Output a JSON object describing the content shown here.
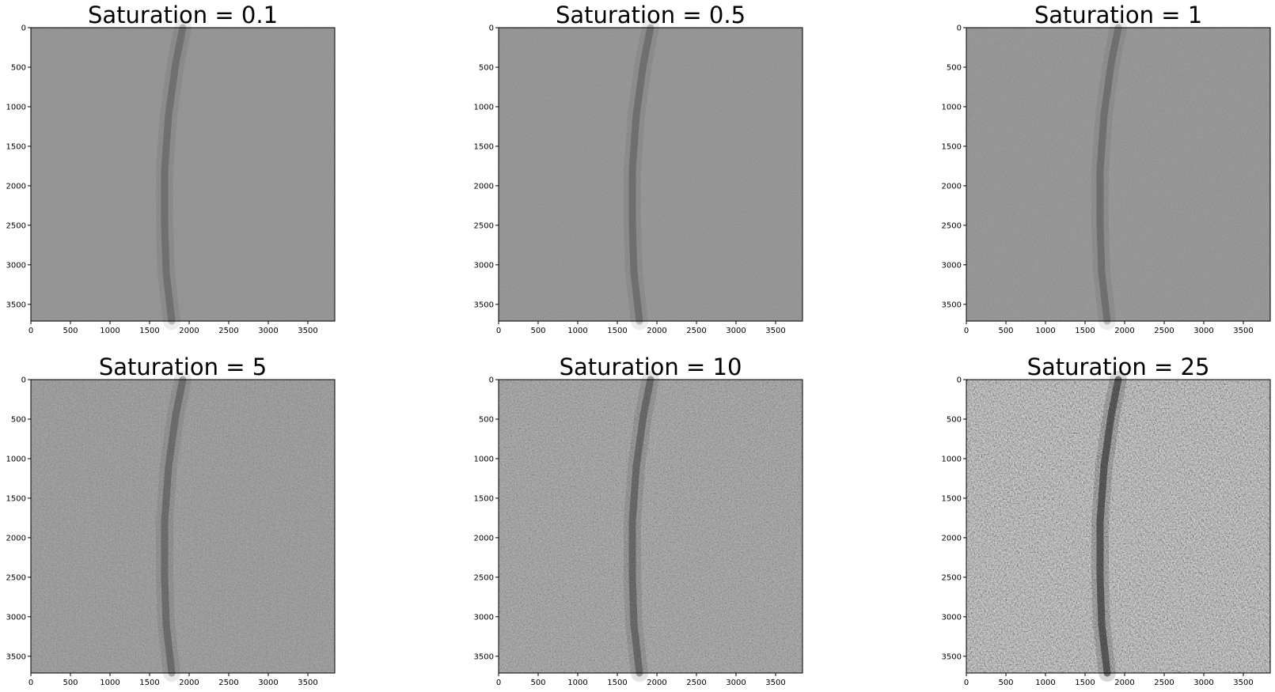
{
  "chart_data": [
    {
      "type": "heatmap",
      "title": "Saturation = 0.1",
      "saturation": 0.1,
      "colormap": "gray",
      "image_width": 3840,
      "image_height": 3712,
      "xlim": [
        0,
        3840
      ],
      "ylim": [
        3712,
        0
      ],
      "x_ticks": [
        0,
        500,
        1000,
        1500,
        2000,
        2500,
        3000,
        3500
      ],
      "y_ticks": [
        0,
        500,
        1000,
        1500,
        2000,
        2500,
        3000,
        3500
      ],
      "x_tick_labels": [
        "0",
        "500",
        "1000",
        "1500",
        "2000",
        "2500",
        "3000",
        "3500"
      ],
      "y_tick_labels": [
        "0",
        "500",
        "1000",
        "1500",
        "2000",
        "2500",
        "3000",
        "3500"
      ]
    },
    {
      "type": "heatmap",
      "title": "Saturation = 0.5",
      "saturation": 0.5,
      "colormap": "gray",
      "image_width": 3840,
      "image_height": 3712,
      "xlim": [
        0,
        3840
      ],
      "ylim": [
        3712,
        0
      ],
      "x_ticks": [
        0,
        500,
        1000,
        1500,
        2000,
        2500,
        3000,
        3500
      ],
      "y_ticks": [
        0,
        500,
        1000,
        1500,
        2000,
        2500,
        3000,
        3500
      ],
      "x_tick_labels": [
        "0",
        "500",
        "1000",
        "1500",
        "2000",
        "2500",
        "3000",
        "3500"
      ],
      "y_tick_labels": [
        "0",
        "500",
        "1000",
        "1500",
        "2000",
        "2500",
        "3000",
        "3500"
      ]
    },
    {
      "type": "heatmap",
      "title": "Saturation = 1",
      "saturation": 1,
      "colormap": "gray",
      "image_width": 3840,
      "image_height": 3712,
      "xlim": [
        0,
        3840
      ],
      "ylim": [
        3712,
        0
      ],
      "x_ticks": [
        0,
        500,
        1000,
        1500,
        2000,
        2500,
        3000,
        3500
      ],
      "y_ticks": [
        0,
        500,
        1000,
        1500,
        2000,
        2500,
        3000,
        3500
      ],
      "x_tick_labels": [
        "0",
        "500",
        "1000",
        "1500",
        "2000",
        "2500",
        "3000",
        "3500"
      ],
      "y_tick_labels": [
        "0",
        "500",
        "1000",
        "1500",
        "2000",
        "2500",
        "3000",
        "3500"
      ]
    },
    {
      "type": "heatmap",
      "title": "Saturation = 5",
      "saturation": 5,
      "colormap": "gray",
      "image_width": 3840,
      "image_height": 3712,
      "xlim": [
        0,
        3840
      ],
      "ylim": [
        3712,
        0
      ],
      "x_ticks": [
        0,
        500,
        1000,
        1500,
        2000,
        2500,
        3000,
        3500
      ],
      "y_ticks": [
        0,
        500,
        1000,
        1500,
        2000,
        2500,
        3000,
        3500
      ],
      "x_tick_labels": [
        "0",
        "500",
        "1000",
        "1500",
        "2000",
        "2500",
        "3000",
        "3500"
      ],
      "y_tick_labels": [
        "0",
        "500",
        "1000",
        "1500",
        "2000",
        "2500",
        "3000",
        "3500"
      ]
    },
    {
      "type": "heatmap",
      "title": "Saturation = 10",
      "saturation": 10,
      "colormap": "gray",
      "image_width": 3840,
      "image_height": 3712,
      "xlim": [
        0,
        3840
      ],
      "ylim": [
        3712,
        0
      ],
      "x_ticks": [
        0,
        500,
        1000,
        1500,
        2000,
        2500,
        3000,
        3500
      ],
      "y_ticks": [
        0,
        500,
        1000,
        1500,
        2000,
        2500,
        3000,
        3500
      ],
      "x_tick_labels": [
        "0",
        "500",
        "1000",
        "1500",
        "2000",
        "2500",
        "3000",
        "3500"
      ],
      "y_tick_labels": [
        "0",
        "500",
        "1000",
        "1500",
        "2000",
        "2500",
        "3000",
        "3500"
      ]
    },
    {
      "type": "heatmap",
      "title": "Saturation = 25",
      "saturation": 25,
      "colormap": "gray",
      "image_width": 3840,
      "image_height": 3712,
      "xlim": [
        0,
        3840
      ],
      "ylim": [
        3712,
        0
      ],
      "x_ticks": [
        0,
        500,
        1000,
        1500,
        2000,
        2500,
        3000,
        3500
      ],
      "y_ticks": [
        0,
        500,
        1000,
        1500,
        2000,
        2500,
        3000,
        3500
      ],
      "x_tick_labels": [
        "0",
        "500",
        "1000",
        "1500",
        "2000",
        "2500",
        "3000",
        "3500"
      ],
      "y_tick_labels": [
        "0",
        "500",
        "1000",
        "1500",
        "2000",
        "2500",
        "3000",
        "3500"
      ]
    }
  ]
}
